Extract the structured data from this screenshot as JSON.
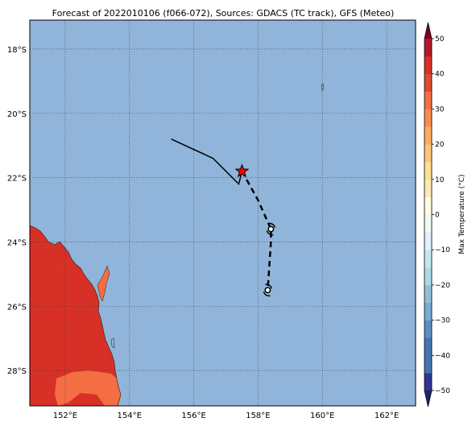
{
  "title": "Forecast of 2022010106 (f066-072), Sources: GDACS (TC track), GFS (Meteo)",
  "map": {
    "lon_range": [
      150.9,
      162.9
    ],
    "lat_range": [
      -29.1,
      -17.1
    ],
    "lon_ticks": [
      152,
      154,
      156,
      158,
      160,
      162
    ],
    "lat_ticks": [
      -18,
      -20,
      -22,
      -24,
      -26,
      -28
    ],
    "lon_tick_labels": [
      "152°E",
      "154°E",
      "156°E",
      "158°E",
      "160°E",
      "162°E"
    ],
    "lat_tick_labels": [
      "18°S",
      "20°S",
      "22°S",
      "24°S",
      "26°S",
      "28°S"
    ],
    "ocean_color": "#91b5da",
    "grid_style": "dotted"
  },
  "track": {
    "past": [
      [
        155.3,
        -20.8
      ],
      [
        156.6,
        -21.4
      ],
      [
        157.4,
        -22.2
      ],
      [
        157.5,
        -21.8
      ]
    ],
    "current_position": [
      157.5,
      -21.8
    ],
    "forecast": [
      [
        157.5,
        -21.8
      ],
      [
        158.0,
        -22.7
      ],
      [
        158.4,
        -23.6
      ],
      [
        158.4,
        -24.0
      ],
      [
        158.3,
        -25.5
      ]
    ],
    "forecast_points": [
      [
        158.4,
        -23.6
      ],
      [
        158.3,
        -25.5
      ]
    ]
  },
  "colorbar": {
    "label": "Max Temperature (°C)",
    "ticks": [
      50,
      40,
      30,
      20,
      10,
      0,
      -10,
      -20,
      -30,
      -40,
      -50
    ],
    "tick_labels": [
      "50",
      "40",
      "30",
      "20",
      "10",
      "0",
      "−10",
      "−20",
      "−30",
      "−40",
      "−50"
    ],
    "levels": [
      -50,
      -45,
      -40,
      -35,
      -30,
      -25,
      -20,
      -15,
      -10,
      -5,
      0,
      5,
      10,
      15,
      20,
      25,
      30,
      35,
      40,
      45,
      50
    ],
    "colors": [
      "#313695",
      "#4575b4",
      "#4575b4",
      "#5b8fc3",
      "#74add1",
      "#91bfdb",
      "#abd9e9",
      "#c5e6f0",
      "#e0f3f8",
      "#f0f9f4",
      "#fffde0",
      "#fee9b0",
      "#fee090",
      "#fdc47a",
      "#fdae61",
      "#f88d52",
      "#f46d43",
      "#e04a33",
      "#d73027",
      "#b4182b",
      "#a50026"
    ],
    "extend_low_color": "#1f2369",
    "extend_high_color": "#7f0020"
  },
  "land": {
    "main_color": "#d73027",
    "coast_color": "#f46d43"
  }
}
